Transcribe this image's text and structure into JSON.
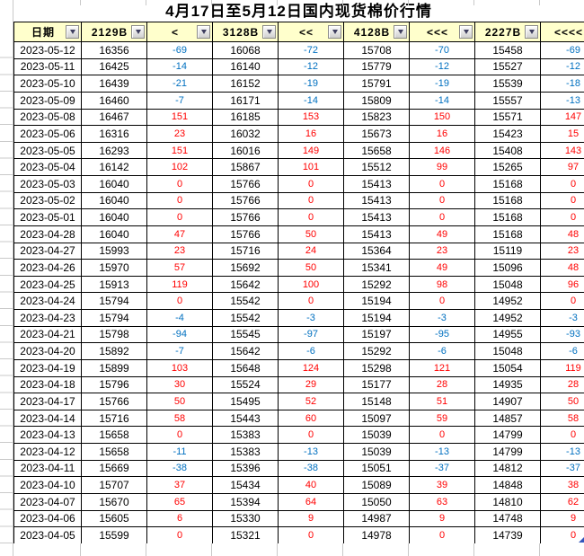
{
  "title": "4月17日至5月12日国内现货棉价行情",
  "columns": [
    {
      "label": "日期",
      "type": "date"
    },
    {
      "label": "2129B",
      "type": "price"
    },
    {
      "label": "<",
      "type": "change"
    },
    {
      "label": "3128B",
      "type": "price"
    },
    {
      "label": "<<",
      "type": "change"
    },
    {
      "label": "4128B",
      "type": "price"
    },
    {
      "label": "<<<",
      "type": "change"
    },
    {
      "label": "2227B",
      "type": "price"
    },
    {
      "label": "<<<<",
      "type": "change"
    }
  ],
  "icons": {
    "filter_dropdown": "chevron-down"
  },
  "rows": [
    [
      "2023-05-12",
      16356,
      -69,
      16068,
      -72,
      15708,
      -70,
      15458,
      -69
    ],
    [
      "2023-05-11",
      16425,
      -14,
      16140,
      -12,
      15779,
      -12,
      15527,
      -12
    ],
    [
      "2023-05-10",
      16439,
      -21,
      16152,
      -19,
      15791,
      -19,
      15539,
      -18
    ],
    [
      "2023-05-09",
      16460,
      -7,
      16171,
      -14,
      15809,
      -14,
      15557,
      -13
    ],
    [
      "2023-05-08",
      16467,
      151,
      16185,
      153,
      15823,
      150,
      15571,
      147
    ],
    [
      "2023-05-06",
      16316,
      23,
      16032,
      16,
      15673,
      16,
      15423,
      15
    ],
    [
      "2023-05-05",
      16293,
      151,
      16016,
      149,
      15658,
      146,
      15408,
      143
    ],
    [
      "2023-05-04",
      16142,
      102,
      15867,
      101,
      15512,
      99,
      15265,
      97
    ],
    [
      "2023-05-03",
      16040,
      0,
      15766,
      0,
      15413,
      0,
      15168,
      0
    ],
    [
      "2023-05-02",
      16040,
      0,
      15766,
      0,
      15413,
      0,
      15168,
      0
    ],
    [
      "2023-05-01",
      16040,
      0,
      15766,
      0,
      15413,
      0,
      15168,
      0
    ],
    [
      "2023-04-28",
      16040,
      47,
      15766,
      50,
      15413,
      49,
      15168,
      48
    ],
    [
      "2023-04-27",
      15993,
      23,
      15716,
      24,
      15364,
      23,
      15119,
      23
    ],
    [
      "2023-04-26",
      15970,
      57,
      15692,
      50,
      15341,
      49,
      15096,
      48
    ],
    [
      "2023-04-25",
      15913,
      119,
      15642,
      100,
      15292,
      98,
      15048,
      96
    ],
    [
      "2023-04-24",
      15794,
      0,
      15542,
      0,
      15194,
      0,
      14952,
      0
    ],
    [
      "2023-04-23",
      15794,
      -4,
      15542,
      -3,
      15194,
      -3,
      14952,
      -3
    ],
    [
      "2023-04-21",
      15798,
      -94,
      15545,
      -97,
      15197,
      -95,
      14955,
      -93
    ],
    [
      "2023-04-20",
      15892,
      -7,
      15642,
      -6,
      15292,
      -6,
      15048,
      -6
    ],
    [
      "2023-04-19",
      15899,
      103,
      15648,
      124,
      15298,
      121,
      15054,
      119
    ],
    [
      "2023-04-18",
      15796,
      30,
      15524,
      29,
      15177,
      28,
      14935,
      28
    ],
    [
      "2023-04-17",
      15766,
      50,
      15495,
      52,
      15148,
      51,
      14907,
      50
    ],
    [
      "2023-04-14",
      15716,
      58,
      15443,
      60,
      15097,
      59,
      14857,
      58
    ],
    [
      "2023-04-13",
      15658,
      0,
      15383,
      0,
      15039,
      0,
      14799,
      0
    ],
    [
      "2023-04-12",
      15658,
      -11,
      15383,
      -13,
      15039,
      -13,
      14799,
      -13
    ],
    [
      "2023-04-11",
      15669,
      -38,
      15396,
      -38,
      15051,
      -37,
      14812,
      -37
    ],
    [
      "2023-04-10",
      15707,
      37,
      15434,
      40,
      15089,
      39,
      14848,
      38
    ],
    [
      "2023-04-07",
      15670,
      65,
      15394,
      64,
      15050,
      63,
      14810,
      62
    ],
    [
      "2023-04-06",
      15605,
      6,
      15330,
      9,
      14987,
      9,
      14748,
      9
    ],
    [
      "2023-04-05",
      15599,
      0,
      15321,
      0,
      14978,
      0,
      14739,
      0
    ]
  ],
  "colors": {
    "title": "#000000",
    "header_background": "#FFFFCC",
    "positive_change": "#FF0000",
    "negative_change": "#0070C0",
    "table_border": "#000000",
    "gridline": "#C9C9C9",
    "corner_marker": "#3355BB"
  }
}
